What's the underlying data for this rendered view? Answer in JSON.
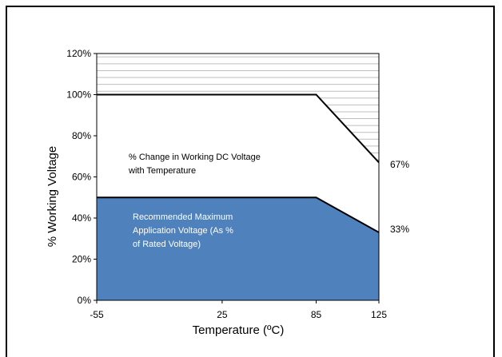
{
  "chart_data": {
    "type": "area",
    "title": "",
    "xlabel": "Temperature (ºC)",
    "ylabel": "% Working Voltage",
    "x_ticks": [
      "-55",
      "25",
      "85",
      "125"
    ],
    "y_ticks": [
      "0%",
      "20%",
      "40%",
      "60%",
      "80%",
      "100%",
      "120%"
    ],
    "xlim": [
      -55,
      125
    ],
    "ylim": [
      0,
      120
    ],
    "grid": false,
    "series": [
      {
        "x": [
          -55,
          85,
          125
        ],
        "y": [
          100,
          100,
          67
        ]
      },
      {
        "x": [
          -55,
          85,
          125
        ],
        "y": [
          50,
          50,
          33
        ]
      }
    ],
    "annotations": {
      "working_dc_voltage": [
        "% Change in Working DC Voltage",
        "with Temperature"
      ],
      "recommended": [
        "Recommended Maximum",
        "Application Voltage (As %",
        "of Rated Voltage)"
      ],
      "end_upper": "67%",
      "end_lower": "33%"
    },
    "colors": {
      "recommended_fill": "#4f81bd",
      "hatch": "#bfbfbf",
      "line": "#000000"
    }
  }
}
